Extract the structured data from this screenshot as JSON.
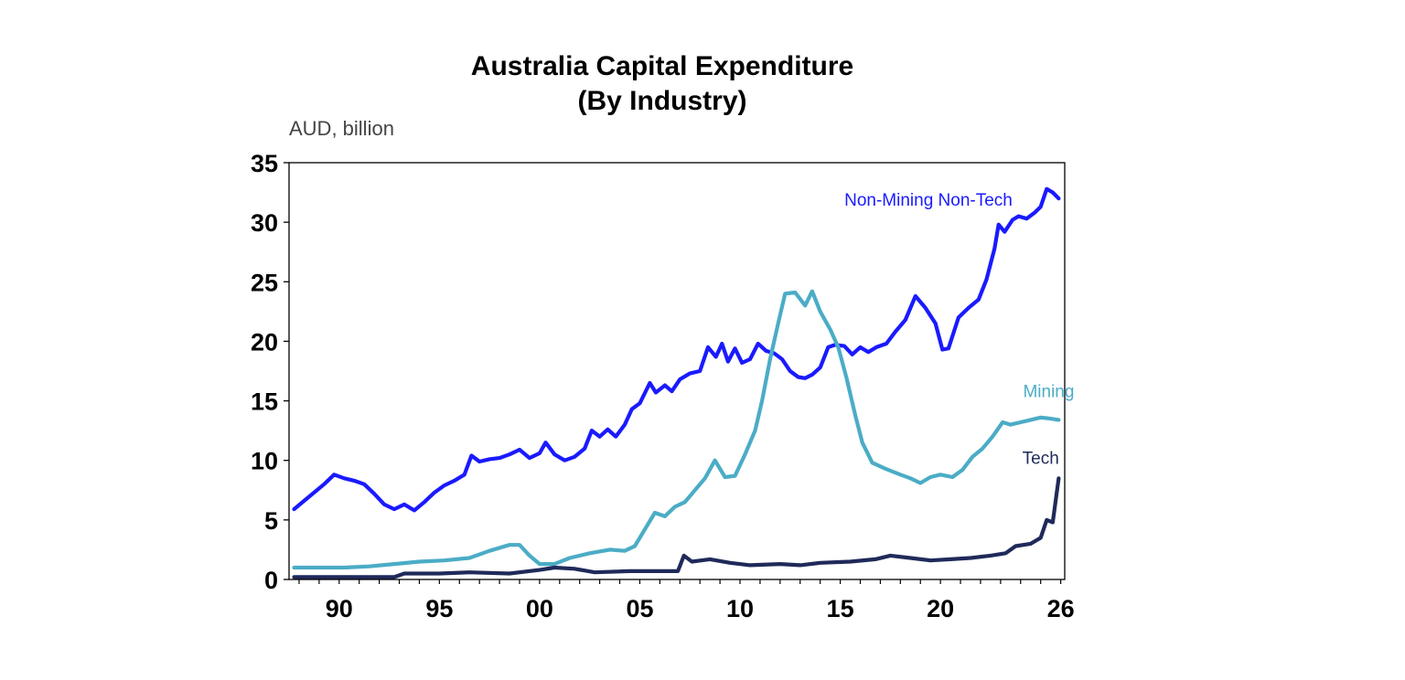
{
  "chart_data": {
    "type": "line",
    "title": "Australia Capital Expenditure",
    "subtitle": "(By Industry)",
    "ylabel": "AUD, billion",
    "ylim": [
      0,
      35
    ],
    "xlim": [
      1987.5,
      2026.2
    ],
    "y_ticks": [
      "0",
      "5",
      "10",
      "15",
      "20",
      "25",
      "30",
      "35"
    ],
    "x_ticks": [
      {
        "value": 1990,
        "label": "90"
      },
      {
        "value": 1995,
        "label": "95"
      },
      {
        "value": 2000,
        "label": "00"
      },
      {
        "value": 2005,
        "label": "05"
      },
      {
        "value": 2010,
        "label": "10"
      },
      {
        "value": 2015,
        "label": "15"
      },
      {
        "value": 2020,
        "label": "20"
      },
      {
        "value": 2026,
        "label": "26"
      }
    ],
    "grid": false,
    "series": [
      {
        "name": "Non-Mining Non-Tech",
        "color": "#1a1aff",
        "points": [
          [
            1987.75,
            5.9
          ],
          [
            1988.25,
            6.6
          ],
          [
            1988.75,
            7.3
          ],
          [
            1989.25,
            8.0
          ],
          [
            1989.75,
            8.8
          ],
          [
            1990.25,
            8.5
          ],
          [
            1990.75,
            8.3
          ],
          [
            1991.25,
            8.0
          ],
          [
            1991.75,
            7.2
          ],
          [
            1992.25,
            6.3
          ],
          [
            1992.75,
            5.9
          ],
          [
            1993.25,
            6.3
          ],
          [
            1993.75,
            5.8
          ],
          [
            1994.25,
            6.5
          ],
          [
            1994.75,
            7.3
          ],
          [
            1995.25,
            7.9
          ],
          [
            1995.75,
            8.3
          ],
          [
            1996.25,
            8.8
          ],
          [
            1996.6,
            10.4
          ],
          [
            1997.0,
            9.9
          ],
          [
            1997.5,
            10.1
          ],
          [
            1998.0,
            10.2
          ],
          [
            1998.5,
            10.5
          ],
          [
            1999.0,
            10.9
          ],
          [
            1999.5,
            10.2
          ],
          [
            2000.0,
            10.6
          ],
          [
            2000.3,
            11.5
          ],
          [
            2000.75,
            10.5
          ],
          [
            2001.25,
            10.0
          ],
          [
            2001.75,
            10.3
          ],
          [
            2002.25,
            11.0
          ],
          [
            2002.6,
            12.5
          ],
          [
            2003.0,
            12.0
          ],
          [
            2003.4,
            12.6
          ],
          [
            2003.8,
            12.0
          ],
          [
            2004.25,
            13.0
          ],
          [
            2004.6,
            14.3
          ],
          [
            2005.0,
            14.8
          ],
          [
            2005.5,
            16.5
          ],
          [
            2005.8,
            15.7
          ],
          [
            2006.25,
            16.3
          ],
          [
            2006.6,
            15.8
          ],
          [
            2007.0,
            16.8
          ],
          [
            2007.5,
            17.3
          ],
          [
            2008.0,
            17.5
          ],
          [
            2008.4,
            19.5
          ],
          [
            2008.8,
            18.7
          ],
          [
            2009.1,
            19.8
          ],
          [
            2009.4,
            18.3
          ],
          [
            2009.75,
            19.4
          ],
          [
            2010.1,
            18.2
          ],
          [
            2010.5,
            18.5
          ],
          [
            2010.9,
            19.8
          ],
          [
            2011.3,
            19.2
          ],
          [
            2011.7,
            19.0
          ],
          [
            2012.1,
            18.5
          ],
          [
            2012.5,
            17.5
          ],
          [
            2012.9,
            17.0
          ],
          [
            2013.25,
            16.9
          ],
          [
            2013.6,
            17.2
          ],
          [
            2014.0,
            17.8
          ],
          [
            2014.4,
            19.5
          ],
          [
            2014.75,
            19.7
          ],
          [
            2015.2,
            19.6
          ],
          [
            2015.6,
            18.9
          ],
          [
            2016.0,
            19.5
          ],
          [
            2016.4,
            19.1
          ],
          [
            2016.8,
            19.5
          ],
          [
            2017.3,
            19.8
          ],
          [
            2017.75,
            20.8
          ],
          [
            2018.25,
            21.8
          ],
          [
            2018.75,
            23.8
          ],
          [
            2019.25,
            22.8
          ],
          [
            2019.75,
            21.5
          ],
          [
            2020.1,
            19.3
          ],
          [
            2020.4,
            19.4
          ],
          [
            2020.9,
            22.0
          ],
          [
            2021.4,
            22.8
          ],
          [
            2021.9,
            23.5
          ],
          [
            2022.3,
            25.2
          ],
          [
            2022.7,
            27.8
          ],
          [
            2022.9,
            29.8
          ],
          [
            2023.2,
            29.2
          ],
          [
            2023.6,
            30.2
          ],
          [
            2023.9,
            30.5
          ],
          [
            2024.3,
            30.3
          ],
          [
            2024.7,
            30.8
          ],
          [
            2025.0,
            31.3
          ],
          [
            2025.3,
            32.8
          ],
          [
            2025.6,
            32.5
          ],
          [
            2025.9,
            32.0
          ]
        ]
      },
      {
        "name": "Mining",
        "color": "#4bacc6",
        "points": [
          [
            1987.75,
            1.0
          ],
          [
            1989.0,
            1.0
          ],
          [
            1990.25,
            1.0
          ],
          [
            1991.5,
            1.1
          ],
          [
            1992.75,
            1.3
          ],
          [
            1994.0,
            1.5
          ],
          [
            1995.25,
            1.6
          ],
          [
            1996.5,
            1.8
          ],
          [
            1997.5,
            2.4
          ],
          [
            1998.5,
            2.9
          ],
          [
            1999.0,
            2.9
          ],
          [
            1999.5,
            2.0
          ],
          [
            2000.0,
            1.3
          ],
          [
            2000.75,
            1.3
          ],
          [
            2001.5,
            1.8
          ],
          [
            2002.5,
            2.2
          ],
          [
            2003.5,
            2.5
          ],
          [
            2004.25,
            2.4
          ],
          [
            2004.75,
            2.8
          ],
          [
            2005.25,
            4.2
          ],
          [
            2005.75,
            5.6
          ],
          [
            2006.25,
            5.3
          ],
          [
            2006.75,
            6.1
          ],
          [
            2007.25,
            6.5
          ],
          [
            2007.75,
            7.5
          ],
          [
            2008.25,
            8.5
          ],
          [
            2008.75,
            10.0
          ],
          [
            2009.25,
            8.6
          ],
          [
            2009.75,
            8.7
          ],
          [
            2010.25,
            10.5
          ],
          [
            2010.75,
            12.5
          ],
          [
            2011.1,
            15.0
          ],
          [
            2011.5,
            18.5
          ],
          [
            2011.9,
            21.5
          ],
          [
            2012.25,
            24.0
          ],
          [
            2012.75,
            24.1
          ],
          [
            2013.25,
            23.0
          ],
          [
            2013.6,
            24.2
          ],
          [
            2014.0,
            22.5
          ],
          [
            2014.5,
            21.0
          ],
          [
            2014.9,
            19.5
          ],
          [
            2015.3,
            17.0
          ],
          [
            2015.75,
            13.8
          ],
          [
            2016.1,
            11.5
          ],
          [
            2016.6,
            9.8
          ],
          [
            2017.25,
            9.3
          ],
          [
            2018.0,
            8.8
          ],
          [
            2018.5,
            8.5
          ],
          [
            2019.0,
            8.1
          ],
          [
            2019.5,
            8.6
          ],
          [
            2020.0,
            8.8
          ],
          [
            2020.6,
            8.6
          ],
          [
            2021.1,
            9.2
          ],
          [
            2021.6,
            10.3
          ],
          [
            2022.1,
            11.0
          ],
          [
            2022.6,
            12.0
          ],
          [
            2023.1,
            13.2
          ],
          [
            2023.5,
            13.0
          ],
          [
            2024.0,
            13.2
          ],
          [
            2024.5,
            13.4
          ],
          [
            2025.0,
            13.6
          ],
          [
            2025.5,
            13.5
          ],
          [
            2025.9,
            13.4
          ]
        ]
      },
      {
        "name": "Tech",
        "color": "#1f2a5a",
        "points": [
          [
            1987.75,
            0.2
          ],
          [
            1990.0,
            0.2
          ],
          [
            1992.75,
            0.2
          ],
          [
            1993.25,
            0.5
          ],
          [
            1995.0,
            0.5
          ],
          [
            1996.5,
            0.6
          ],
          [
            1998.5,
            0.5
          ],
          [
            2000.0,
            0.8
          ],
          [
            2000.75,
            1.0
          ],
          [
            2001.75,
            0.9
          ],
          [
            2002.75,
            0.6
          ],
          [
            2004.5,
            0.7
          ],
          [
            2006.0,
            0.7
          ],
          [
            2006.9,
            0.7
          ],
          [
            2007.2,
            2.0
          ],
          [
            2007.6,
            1.5
          ],
          [
            2008.5,
            1.7
          ],
          [
            2009.5,
            1.4
          ],
          [
            2010.5,
            1.2
          ],
          [
            2012.0,
            1.3
          ],
          [
            2013.0,
            1.2
          ],
          [
            2014.0,
            1.4
          ],
          [
            2015.5,
            1.5
          ],
          [
            2016.75,
            1.7
          ],
          [
            2017.5,
            2.0
          ],
          [
            2018.5,
            1.8
          ],
          [
            2019.5,
            1.6
          ],
          [
            2020.5,
            1.7
          ],
          [
            2021.5,
            1.8
          ],
          [
            2022.5,
            2.0
          ],
          [
            2023.25,
            2.2
          ],
          [
            2023.75,
            2.8
          ],
          [
            2024.5,
            3.0
          ],
          [
            2025.0,
            3.5
          ],
          [
            2025.3,
            5.0
          ],
          [
            2025.6,
            4.8
          ],
          [
            2025.9,
            8.5
          ]
        ]
      }
    ],
    "series_labels": [
      {
        "series": "Non-Mining Non-Tech",
        "text": "Non-Mining Non-Tech",
        "x": 2019.4,
        "y": 31.4
      },
      {
        "series": "Mining",
        "text": "Mining",
        "x": 2025.4,
        "y": 15.3
      },
      {
        "series": "Tech",
        "text": "Tech",
        "x": 2025.0,
        "y": 9.7
      }
    ]
  }
}
